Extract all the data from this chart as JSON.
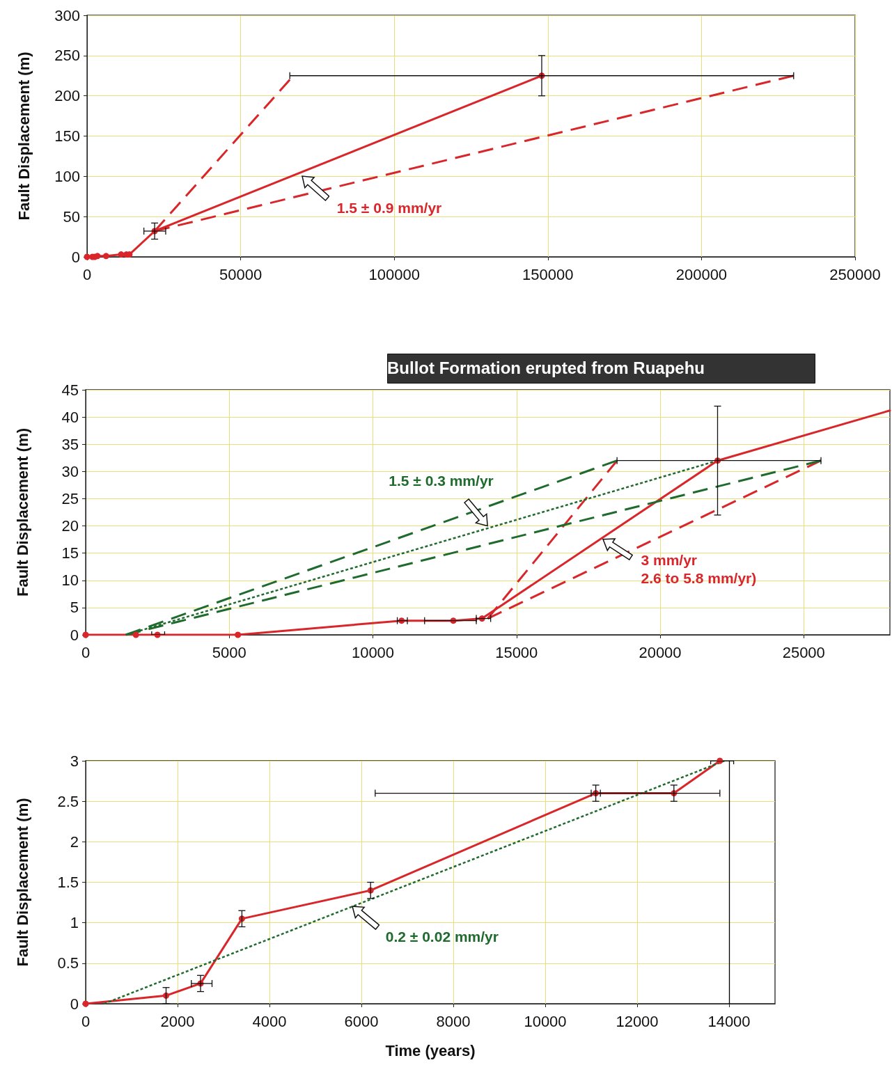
{
  "chart_data": [
    {
      "type": "line",
      "ylabel": "Fault Displacement (m)",
      "xlim": [
        0,
        250000
      ],
      "xticks": [
        0,
        50000,
        100000,
        150000,
        200000,
        250000
      ],
      "ylim": [
        0,
        300
      ],
      "yticks": [
        0,
        50,
        100,
        150,
        200,
        250,
        300
      ],
      "grid": true,
      "annotations": [
        {
          "text": "1.5 ± 0.9 mm/yr",
          "x": 70000,
          "y": 100
        }
      ],
      "series": [
        {
          "color": "#d9262a",
          "marker": "circle",
          "line_style": "solid",
          "x": [
            0,
            1750,
            2500,
            3400,
            6200,
            11100,
            12800,
            13800,
            22000,
            148000
          ],
          "values": [
            0,
            0,
            0,
            1,
            1,
            3,
            3,
            3,
            32,
            225
          ],
          "errors": [
            null,
            null,
            null,
            null,
            null,
            null,
            null,
            null,
            [
              22,
              42
            ],
            [
              200,
              250
            ]
          ],
          "xerrors": [
            null,
            null,
            null,
            null,
            null,
            null,
            null,
            null,
            [
              18500,
              25600
            ],
            [
              66000,
              230000
            ]
          ]
        },
        {
          "color": "#d9262a",
          "marker": "none",
          "line_style": "dashed",
          "x": [
            22000,
            66000
          ],
          "values": [
            32,
            220
          ]
        },
        {
          "color": "#d9262a",
          "marker": "none",
          "line_style": "dashed",
          "x": [
            22000,
            230000
          ],
          "values": [
            32,
            225
          ]
        }
      ]
    },
    {
      "type": "line",
      "ylabel": "Fault Displacement (m)",
      "xlim": [
        0,
        28000
      ],
      "xticks": [
        0,
        5000,
        10000,
        15000,
        20000,
        25000
      ],
      "ylim": [
        0,
        45
      ],
      "yticks": [
        0,
        5,
        10,
        15,
        20,
        25,
        30,
        35,
        40,
        45
      ],
      "grid": true,
      "annotations": [
        "Bullot Formation erupted from Ruapehu",
        {
          "text": "1.5 ± 0.3 mm/yr",
          "x": 14000,
          "y": 20
        },
        {
          "text": "3 mm/yr\n2.6 to 5.8 mm/yr)",
          "x": 18000,
          "y": 17.5
        }
      ],
      "series": [
        {
          "color": "#d9262a",
          "marker": "circle",
          "line_style": "solid",
          "x": [
            0,
            1750,
            2500,
            5300,
            11000,
            12800,
            13800,
            22000
          ],
          "values": [
            0,
            0,
            0,
            0,
            2.6,
            2.6,
            3,
            32
          ],
          "errors": [
            null,
            null,
            null,
            null,
            null,
            null,
            null,
            [
              22,
              42
            ]
          ],
          "xerrors": [
            null,
            null,
            [
              2300,
              2750
            ],
            null,
            [
              10850,
              11200
            ],
            [
              11800,
              13600
            ],
            [
              13600,
              14100
            ],
            [
              18500,
              25600
            ]
          ]
        },
        {
          "color": "#d9262a",
          "marker": "none",
          "line_style": "solid",
          "x": [
            22000,
            28000
          ],
          "values": [
            32,
            41.2
          ]
        },
        {
          "color": "#d9262a",
          "marker": "none",
          "line_style": "dashed",
          "x": [
            14000,
            18500
          ],
          "values": [
            3,
            32
          ]
        },
        {
          "color": "#d9262a",
          "marker": "none",
          "line_style": "dashed",
          "x": [
            14000,
            25600
          ],
          "values": [
            3,
            32
          ]
        },
        {
          "color": "#1f6b2e",
          "marker": "none",
          "line_style": "dotted",
          "x": [
            1400,
            22000
          ],
          "values": [
            0,
            32
          ]
        },
        {
          "color": "#1f6b2e",
          "marker": "none",
          "line_style": "dashed",
          "x": [
            1400,
            18500
          ],
          "values": [
            0,
            32
          ]
        },
        {
          "color": "#1f6b2e",
          "marker": "none",
          "line_style": "dashed",
          "x": [
            1400,
            25600
          ],
          "values": [
            0,
            32
          ]
        }
      ]
    },
    {
      "type": "line",
      "xlabel": "Time (years)",
      "ylabel": "Fault Displacement (m)",
      "xlim": [
        0,
        15000
      ],
      "xticks": [
        0,
        2000,
        4000,
        6000,
        8000,
        10000,
        12000,
        14000
      ],
      "ylim": [
        0,
        3
      ],
      "yticks": [
        0,
        0.5,
        1,
        1.5,
        2,
        2.5,
        3
      ],
      "grid": true,
      "annotations": [
        {
          "text": "0.2 ± 0.02 mm/yr",
          "x": 5800,
          "y": 1.2
        }
      ],
      "ref_lines": [
        {
          "axis": "x",
          "value": 14000,
          "color": "#000000"
        }
      ],
      "series": [
        {
          "color": "#d9262a",
          "marker": "circle",
          "line_style": "solid",
          "x": [
            0,
            1750,
            2500,
            3400,
            6200,
            11100,
            12800,
            13800
          ],
          "values": [
            0,
            0.1,
            0.25,
            1.05,
            1.4,
            2.6,
            2.6,
            3
          ],
          "errors": [
            null,
            0.1,
            0.1,
            0.1,
            0.1,
            0.1,
            0.1,
            null
          ],
          "xerrors": [
            null,
            null,
            [
              2300,
              2750
            ],
            null,
            null,
            [
              11000,
              11200
            ],
            [
              6300,
              13800
            ],
            [
              13600,
              14100
            ]
          ]
        },
        {
          "color": "#1f6b2e",
          "marker": "none",
          "line_style": "dotted",
          "x": [
            400,
            13900
          ],
          "values": [
            0,
            3
          ]
        }
      ]
    }
  ]
}
